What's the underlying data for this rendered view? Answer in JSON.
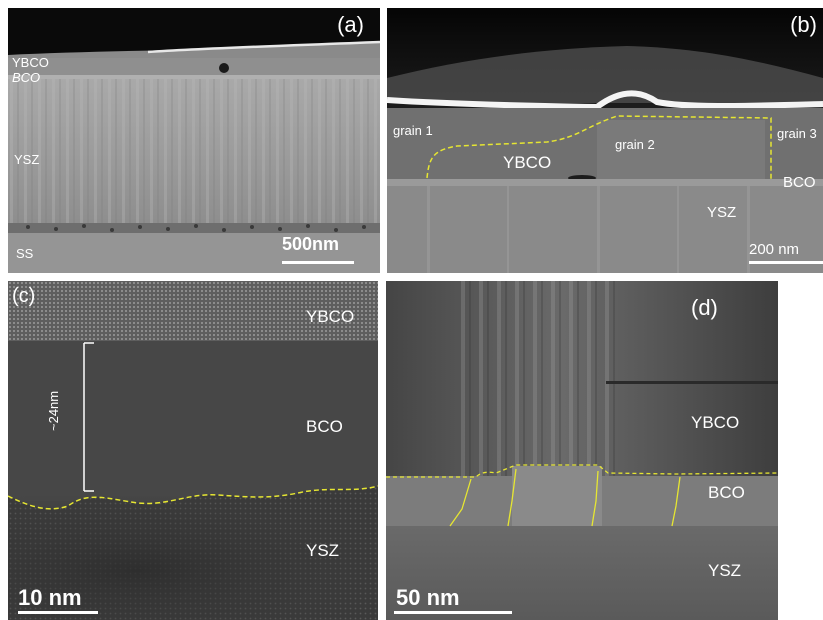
{
  "panel_a": {
    "label": "(a)",
    "layers": {
      "ybco": "YBCO",
      "bco": "BCO",
      "ysz": "YSZ",
      "ss": "SS"
    },
    "scale": "500nm"
  },
  "panel_b": {
    "label": "(b)",
    "grains": {
      "g1": "grain 1",
      "g2": "grain 2",
      "g3": "grain 3"
    },
    "layers": {
      "ybco": "YBCO",
      "bco": "BCO",
      "ysz": "YSZ"
    },
    "scale": "200 nm"
  },
  "panel_c": {
    "label": "(c)",
    "layers": {
      "ybco": "YBCO",
      "bco": "BCO",
      "ysz": "YSZ"
    },
    "thickness": "~24nm",
    "scale": "10 nm"
  },
  "panel_d": {
    "label": "(d)",
    "layers": {
      "ybco": "YBCO",
      "bco": "BCO",
      "ysz": "YSZ"
    },
    "scale": "50 nm"
  },
  "colors": {
    "interface_line": "#e6e632",
    "label_text": "#ffffff"
  }
}
